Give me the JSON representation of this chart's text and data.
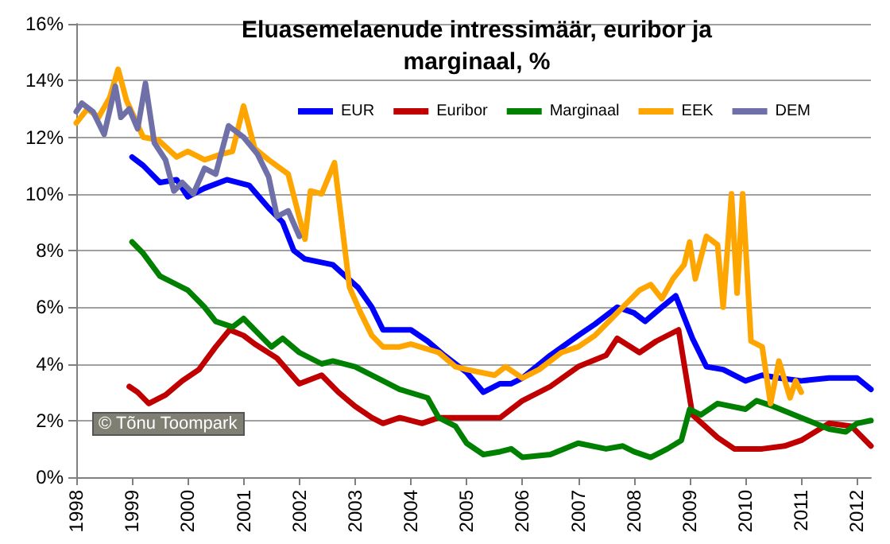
{
  "chart_data": {
    "type": "line",
    "title": "Eluasemelaenude intressimäär, euribor ja\nmarginaal, %",
    "annotations": [
      "© Tõnu Toompark"
    ],
    "xlim": [
      1998,
      2012.25
    ],
    "xticks": [
      1998,
      1999,
      2000,
      2001,
      2002,
      2003,
      2004,
      2005,
      2006,
      2007,
      2008,
      2009,
      2010,
      2011,
      2012
    ],
    "ylim": [
      0,
      16
    ],
    "yticks": [
      {
        "value": 0,
        "label": "0%"
      },
      {
        "value": 2,
        "label": "2%"
      },
      {
        "value": 4,
        "label": "4%"
      },
      {
        "value": 6,
        "label": "6%"
      },
      {
        "value": 8,
        "label": "8%"
      },
      {
        "value": 10,
        "label": "10%"
      },
      {
        "value": 12,
        "label": "12%"
      },
      {
        "value": 14,
        "label": "14%"
      },
      {
        "value": 16,
        "label": "16%"
      }
    ],
    "grid": "y",
    "legend": "top right",
    "marker": "none",
    "line_style": "solid",
    "series": [
      {
        "name": "EUR",
        "color": "#0000ff",
        "x": [
          1999,
          1999.2,
          1999.5,
          1999.8,
          2000,
          2000.3,
          2000.7,
          2001.1,
          2001.45,
          2001.7,
          2001.9,
          2002.1,
          2002.6,
          2003.05,
          2003.3,
          2003.5,
          2003.8,
          2004,
          2004.3,
          2004.6,
          2004.8,
          2005,
          2005.3,
          2005.6,
          2005.8,
          2006,
          2006.5,
          2007,
          2007.3,
          2007.7,
          2008,
          2008.2,
          2008.5,
          2008.75,
          2009.05,
          2009.3,
          2009.6,
          2010,
          2010.3,
          2010.6,
          2011,
          2011.5,
          2012,
          2012.25
        ],
        "values": [
          11.3,
          11.0,
          10.4,
          10.5,
          9.9,
          10.2,
          10.5,
          10.3,
          9.5,
          9.0,
          8.0,
          7.7,
          7.5,
          6.7,
          6.0,
          5.2,
          5.2,
          5.2,
          4.8,
          4.3,
          4.0,
          3.7,
          3.0,
          3.3,
          3.3,
          3.5,
          4.3,
          5.0,
          5.4,
          6.0,
          5.8,
          5.5,
          6.0,
          6.4,
          4.9,
          3.9,
          3.8,
          3.4,
          3.6,
          3.5,
          3.4,
          3.5,
          3.5,
          3.1
        ]
      },
      {
        "name": "Euribor",
        "color": "#c00000",
        "x": [
          1998.95,
          1999.1,
          1999.3,
          1999.6,
          1999.9,
          2000.2,
          2000.5,
          2000.75,
          2001,
          2001.2,
          2001.6,
          2002,
          2002.4,
          2002.7,
          2003,
          2003.3,
          2003.5,
          2003.8,
          2004.2,
          2004.5,
          2005,
          2005.6,
          2006,
          2006.5,
          2007,
          2007.5,
          2007.7,
          2008.1,
          2008.4,
          2008.8,
          2009.05,
          2009.5,
          2009.8,
          2010.3,
          2010.7,
          2011,
          2011.5,
          2011.9,
          2012.25
        ],
        "values": [
          3.2,
          3.0,
          2.6,
          2.9,
          3.4,
          3.8,
          4.6,
          5.2,
          5.0,
          4.7,
          4.2,
          3.3,
          3.6,
          3.0,
          2.5,
          2.1,
          1.9,
          2.1,
          1.9,
          2.1,
          2.1,
          2.1,
          2.7,
          3.2,
          3.9,
          4.3,
          4.9,
          4.4,
          4.8,
          5.2,
          2.2,
          1.4,
          1.0,
          1.0,
          1.1,
          1.3,
          1.9,
          1.8,
          1.1
        ]
      },
      {
        "name": "Marginaal",
        "color": "#008000",
        "x": [
          1999,
          1999.2,
          1999.5,
          1999.8,
          2000,
          2000.3,
          2000.5,
          2000.8,
          2001,
          2001.3,
          2001.5,
          2001.7,
          2002,
          2002.4,
          2002.6,
          2003,
          2003.5,
          2003.8,
          2004.3,
          2004.5,
          2004.8,
          2005,
          2005.3,
          2005.6,
          2005.8,
          2006,
          2006.5,
          2007,
          2007.5,
          2007.8,
          2008,
          2008.3,
          2008.6,
          2008.85,
          2009,
          2009.2,
          2009.5,
          2010,
          2010.2,
          2010.5,
          2011,
          2011.5,
          2011.8,
          2012,
          2012.25
        ],
        "values": [
          8.3,
          7.9,
          7.1,
          6.8,
          6.6,
          6.0,
          5.5,
          5.3,
          5.6,
          5.0,
          4.6,
          4.9,
          4.4,
          4.0,
          4.1,
          3.9,
          3.4,
          3.1,
          2.8,
          2.1,
          1.8,
          1.2,
          0.8,
          0.9,
          1.0,
          0.7,
          0.8,
          1.2,
          1.0,
          1.1,
          0.9,
          0.7,
          1.0,
          1.3,
          2.4,
          2.2,
          2.6,
          2.4,
          2.7,
          2.5,
          2.1,
          1.7,
          1.6,
          1.9,
          2.0
        ]
      },
      {
        "name": "EEK",
        "color": "#ffa500",
        "x": [
          1998,
          1998.2,
          1998.4,
          1998.6,
          1998.75,
          1998.9,
          1999.2,
          1999.47,
          1999.8,
          2000,
          2000.3,
          2000.6,
          2000.8,
          2001,
          2001.2,
          2001.45,
          2001.8,
          2002.1,
          2002.2,
          2002.4,
          2002.63,
          2002.9,
          2003.1,
          2003.3,
          2003.5,
          2003.8,
          2004,
          2004.5,
          2004.8,
          2005,
          2005.5,
          2005.7,
          2006,
          2006.3,
          2006.7,
          2007,
          2007.3,
          2007.6,
          2007.9,
          2008.1,
          2008.3,
          2008.5,
          2008.7,
          2008.9,
          2009,
          2009.1,
          2009.3,
          2009.5,
          2009.6,
          2009.75,
          2009.85,
          2009.95,
          2010.1,
          2010.3,
          2010.45,
          2010.6,
          2010.8,
          2010.9,
          2011
        ],
        "values": [
          12.5,
          13.0,
          12.7,
          13.4,
          14.4,
          13.3,
          12.0,
          11.9,
          11.3,
          11.5,
          11.2,
          11.4,
          11.5,
          13.1,
          11.6,
          11.2,
          10.7,
          8.4,
          10.1,
          10.0,
          11.1,
          6.7,
          5.8,
          5.0,
          4.6,
          4.6,
          4.7,
          4.4,
          3.9,
          3.8,
          3.6,
          3.9,
          3.5,
          3.8,
          4.4,
          4.6,
          5.0,
          5.6,
          6.2,
          6.6,
          6.8,
          6.3,
          7.0,
          7.5,
          8.3,
          7.0,
          8.5,
          8.2,
          6.0,
          10.0,
          6.5,
          10.0,
          4.8,
          4.6,
          2.6,
          4.1,
          2.8,
          3.4,
          3.0
        ]
      },
      {
        "name": "DEM",
        "color": "#7070a8",
        "x": [
          1998,
          1998.1,
          1998.3,
          1998.5,
          1998.7,
          1998.8,
          1998.95,
          1999.1,
          1999.24,
          1999.4,
          1999.6,
          1999.75,
          1999.9,
          2000.1,
          2000.3,
          2000.5,
          2000.73,
          2001,
          2001.25,
          2001.45,
          2001.6,
          2001.8,
          2002
        ],
        "values": [
          12.9,
          13.2,
          12.9,
          12.1,
          13.8,
          12.7,
          13.0,
          12.3,
          13.9,
          11.8,
          11.2,
          10.1,
          10.4,
          10.0,
          10.9,
          10.7,
          12.4,
          12.0,
          11.4,
          10.6,
          9.2,
          9.4,
          8.5
        ]
      }
    ]
  }
}
